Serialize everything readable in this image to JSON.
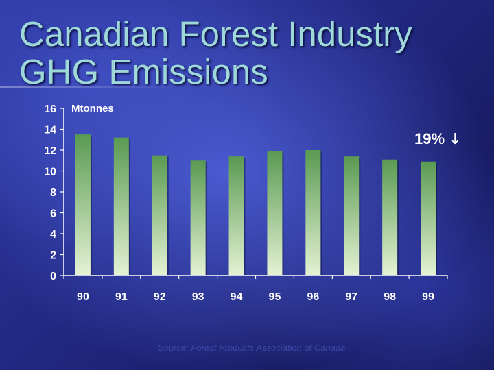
{
  "title_lines": [
    "Canadian Forest Industry",
    "GHG Emissions"
  ],
  "unit_label": "Mtonnes",
  "annotation": {
    "text": "19%",
    "arrow_icon": "down-arrow-icon",
    "arrow_glyph": "↓"
  },
  "source": "Source: Forest Products Association of Canada",
  "colors": {
    "bar_top": "#5a9a52",
    "bar_bottom": "#e4f2d4",
    "axis": "#ffffff",
    "title": "#9fd8d8"
  },
  "chart_data": {
    "type": "bar",
    "categories": [
      "90",
      "91",
      "92",
      "93",
      "94",
      "95",
      "96",
      "97",
      "98",
      "99"
    ],
    "values": [
      13.5,
      13.2,
      11.5,
      11.0,
      11.4,
      11.9,
      12.0,
      11.4,
      11.1,
      10.9
    ],
    "ylabel": "Mtonnes",
    "ylim": [
      0,
      16
    ],
    "yticks": [
      "0",
      "2",
      "4",
      "6",
      "8",
      "10",
      "12",
      "14",
      "16"
    ],
    "grid": false
  }
}
